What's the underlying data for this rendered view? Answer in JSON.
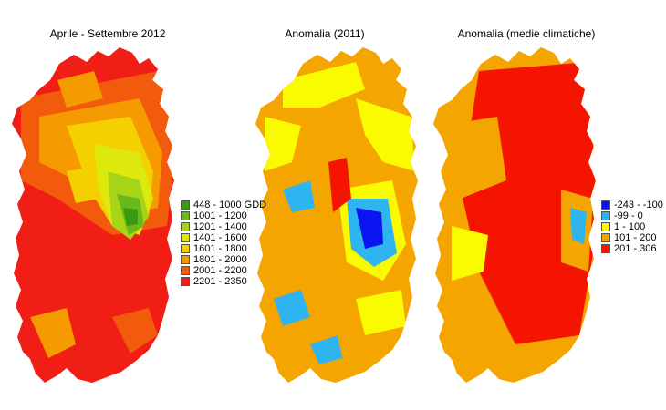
{
  "panels": [
    {
      "title": "Aprile - Settembre 2012",
      "legend": [
        {
          "label": "448 - 1000 GDD",
          "color": "#3a9a10"
        },
        {
          "label": "1001 - 1200",
          "color": "#6ab81a"
        },
        {
          "label": "1201 - 1400",
          "color": "#a8d418"
        },
        {
          "label": "1401 - 1600",
          "color": "#dde80c"
        },
        {
          "label": "1601 - 1800",
          "color": "#f4d000"
        },
        {
          "label": "1801 - 2000",
          "color": "#f59b00"
        },
        {
          "label": "2001 - 2200",
          "color": "#f25a0c"
        },
        {
          "label": "2201 - 2350",
          "color": "#f01e14"
        }
      ]
    },
    {
      "title": "Anomalia (2011)",
      "legend": []
    },
    {
      "title": "Anomalia (medie climatiche)",
      "legend": [
        {
          "label": "-243 - -100",
          "color": "#0a14f0"
        },
        {
          "label": "-99 - 0",
          "color": "#2eb4f0"
        },
        {
          "label": "1 - 100",
          "color": "#fafa00"
        },
        {
          "label": "101 - 200",
          "color": "#f5a500"
        },
        {
          "label": "201 - 306",
          "color": "#f51400"
        }
      ]
    }
  ]
}
